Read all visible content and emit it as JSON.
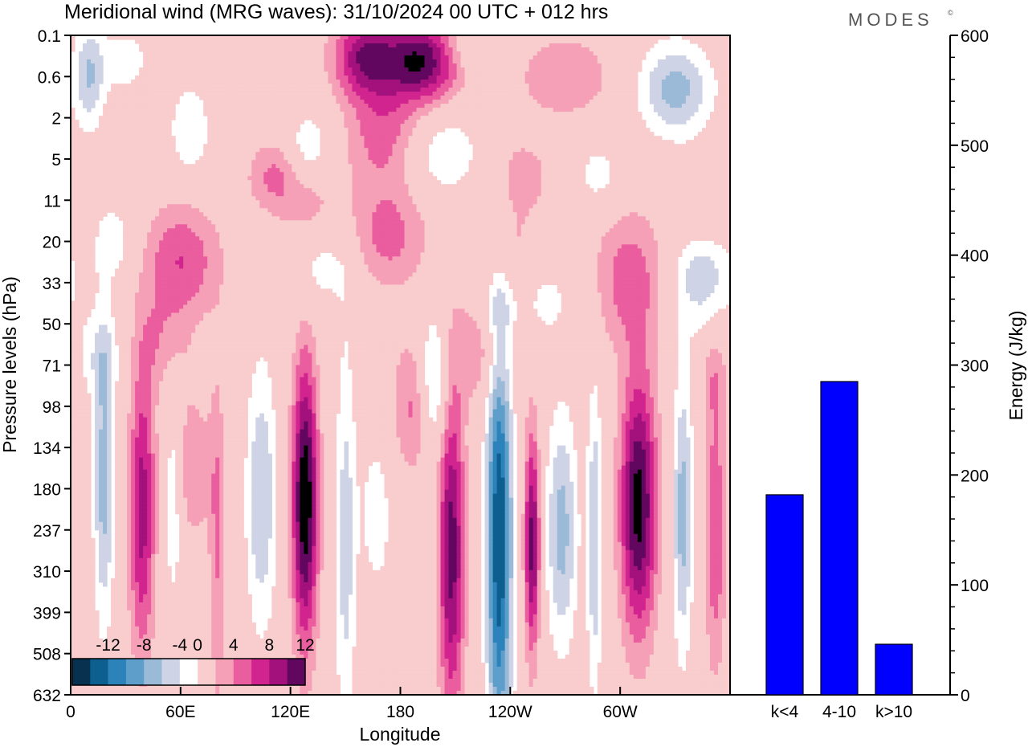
{
  "header": {
    "title": "Meridional wind (MRG waves):  31/10/2024  00 UTC  + 012 hrs",
    "brand": "MODES",
    "brand_mark": "©"
  },
  "colors": {
    "neg": [
      "#08304f",
      "#0d5f8f",
      "#2b83ba",
      "#5e9ecb",
      "#9bbad8",
      "#cfd3e6"
    ],
    "zero": "#ffffff",
    "pos": [
      "#f9cdcd",
      "#f6a0b8",
      "#ea5d9e",
      "#d1248f",
      "#a3117d",
      "#62075f"
    ],
    "bar": "#0000ff"
  },
  "chart_data": [
    {
      "type": "heatmap",
      "title": "Meridional wind (MRG waves):  31/10/2024  00 UTC  + 012 hrs",
      "xlabel": "Longitude",
      "ylabel": "Pressure levels (hPa)",
      "x_ticks": [
        "0",
        "60E",
        "120E",
        "180",
        "120W",
        "60W"
      ],
      "y_ticks": [
        "0.1",
        "0.6",
        "2",
        "5",
        "11",
        "20",
        "33",
        "50",
        "71",
        "98",
        "134",
        "180",
        "237",
        "310",
        "399",
        "508",
        "632"
      ],
      "colorbar": {
        "labels": [
          "-12",
          "-8",
          "-4",
          "0",
          "4",
          "8",
          "12"
        ],
        "levels": [
          -14,
          -12,
          -10,
          -8,
          -6,
          -4,
          -2,
          2,
          4,
          6,
          8,
          10,
          12,
          14
        ]
      },
      "features": [
        {
          "lon": 10,
          "lev": 1,
          "amp": -6,
          "wlon": 6,
          "wlev": 0.9
        },
        {
          "lon": 30,
          "lev": 0.6,
          "amp": -3,
          "wlon": 10,
          "wlev": 0.6
        },
        {
          "lon": 65,
          "lev": 2.3,
          "amp": -4,
          "wlon": 8,
          "wlev": 0.8
        },
        {
          "lon": 65,
          "lev": 10.5,
          "amp": 4,
          "wlon": 9,
          "wlev": 1.3
        },
        {
          "lon": 18,
          "lev": 10.8,
          "amp": -7,
          "wlon": 4,
          "wlev": 2.5
        },
        {
          "lon": 39,
          "lev": 11.5,
          "amp": 9,
          "wlon": 5,
          "wlev": 2.5
        },
        {
          "lon": 56,
          "lev": 11.0,
          "amp": -5,
          "wlon": 4,
          "wlev": 1.8
        },
        {
          "lon": 80,
          "lev": 12.5,
          "amp": 4,
          "wlon": 3,
          "wlev": 3.0
        },
        {
          "lon": 104,
          "lev": 11.2,
          "amp": -6,
          "wlon": 6,
          "wlev": 2.3
        },
        {
          "lon": 128,
          "lev": 11.3,
          "amp": 14,
          "wlon": 5,
          "wlev": 2.4
        },
        {
          "lon": 150,
          "lev": 12.3,
          "amp": -5,
          "wlon": 4,
          "wlev": 3.5
        },
        {
          "lon": 167,
          "lev": 11.6,
          "amp": -3,
          "wlon": 7,
          "wlev": 1.6
        },
        {
          "lon": 188,
          "lev": 9.0,
          "amp": 5,
          "wlon": 9,
          "wlev": 1.2
        },
        {
          "lon": 198,
          "lev": 8.5,
          "amp": -7,
          "wlon": 6,
          "wlev": 1.2
        },
        {
          "lon": 208,
          "lev": 12.5,
          "amp": 11,
          "wlon": 5,
          "wlev": 2.8
        },
        {
          "lon": 234,
          "lev": 12.2,
          "amp": -14,
          "wlon": 5,
          "wlev": 3.8
        },
        {
          "lon": 252,
          "lev": 12.3,
          "amp": 11,
          "wlon": 3,
          "wlev": 1.9
        },
        {
          "lon": 268,
          "lev": 12.0,
          "amp": -7,
          "wlon": 6,
          "wlev": 2.0
        },
        {
          "lon": 286,
          "lev": 12.2,
          "amp": -6,
          "wlon": 3,
          "wlev": 2.6
        },
        {
          "lon": 310,
          "lev": 11.4,
          "amp": 13,
          "wlon": 7,
          "wlev": 2.2
        },
        {
          "lon": 334,
          "lev": 11.6,
          "amp": -7,
          "wlon": 4,
          "wlev": 2.4
        },
        {
          "lon": 352,
          "lev": 12.0,
          "amp": 6,
          "wlon": 4,
          "wlev": 2.4
        },
        {
          "lon": 160,
          "lev": 0.5,
          "amp": 9,
          "wlon": 12,
          "wlev": 0.7
        },
        {
          "lon": 192,
          "lev": 0.6,
          "amp": 12,
          "wlon": 15,
          "wlev": 0.7
        },
        {
          "lon": 215,
          "lev": 0.3,
          "amp": -3,
          "wlon": 12,
          "wlev": 0.5
        },
        {
          "lon": 270,
          "lev": 1.0,
          "amp": 4,
          "wlon": 18,
          "wlev": 0.7
        },
        {
          "lon": 330,
          "lev": 1.3,
          "amp": -7,
          "wlon": 14,
          "wlev": 0.8
        },
        {
          "lon": 170,
          "lev": 2.3,
          "amp": 5,
          "wlon": 14,
          "wlev": 1.0
        },
        {
          "lon": 130,
          "lev": 2.7,
          "amp": -4,
          "wlon": 8,
          "wlev": 0.6
        },
        {
          "lon": 110,
          "lev": 3.4,
          "amp": 4,
          "wlon": 10,
          "wlev": 0.6
        },
        {
          "lon": 205,
          "lev": 2.9,
          "amp": -4,
          "wlon": 14,
          "wlev": 0.7
        },
        {
          "lon": 245,
          "lev": 3.4,
          "amp": 3,
          "wlon": 14,
          "wlev": 0.7
        },
        {
          "lon": 288,
          "lev": 3.4,
          "amp": -3,
          "wlon": 10,
          "wlev": 0.6
        },
        {
          "lon": 130,
          "lev": 4.4,
          "amp": 5,
          "wlon": 14,
          "wlev": 0.8
        },
        {
          "lon": 172,
          "lev": 4.9,
          "amp": 5,
          "wlon": 16,
          "wlev": 0.9
        },
        {
          "lon": 135,
          "lev": 5.2,
          "amp": -5,
          "wlon": 16,
          "wlev": 0.9
        },
        {
          "lon": 60,
          "lev": 5.5,
          "amp": 6,
          "wlon": 15,
          "wlev": 1.0
        },
        {
          "lon": 25,
          "lev": 5.0,
          "amp": -3,
          "wlon": 10,
          "wlev": 0.8
        },
        {
          "lon": 240,
          "lev": 5.4,
          "amp": 3,
          "wlon": 14,
          "wlev": 0.8
        },
        {
          "lon": 345,
          "lev": 5.5,
          "amp": -6,
          "wlon": 12,
          "wlev": 1.2
        },
        {
          "lon": 345,
          "lev": 4.6,
          "amp": 4,
          "wlon": 12,
          "wlev": 0.6
        },
        {
          "lon": 305,
          "lev": 5.9,
          "amp": 5,
          "wlon": 14,
          "wlev": 1.2
        },
        {
          "lon": 258,
          "lev": 6.3,
          "amp": -3,
          "wlon": 12,
          "wlev": 0.8
        },
        {
          "lon": 225,
          "lev": 7.5,
          "amp": 4,
          "wlon": 12,
          "wlev": 1.0
        },
        {
          "lon": 232,
          "lev": 6.5,
          "amp": -3,
          "wlon": 10,
          "wlev": 0.7
        },
        {
          "lon": 50,
          "lev": 7.5,
          "amp": 3,
          "wlon": 10,
          "wlev": 0.8
        },
        {
          "lon": 15,
          "lev": 7.8,
          "amp": -3,
          "wlon": 10,
          "wlev": 0.8
        },
        {
          "lon": 352,
          "lev": 8.2,
          "amp": 3,
          "wlon": 6,
          "wlev": 0.8
        }
      ]
    },
    {
      "type": "bar",
      "categories": [
        "k<4",
        "4-10",
        "k>10"
      ],
      "values": [
        182,
        285,
        46
      ],
      "ylabel": "Energy (J/kg)",
      "ylim": [
        0,
        600
      ],
      "y_ticks": [
        "0",
        "100",
        "200",
        "300",
        "400",
        "500",
        "600"
      ]
    }
  ]
}
